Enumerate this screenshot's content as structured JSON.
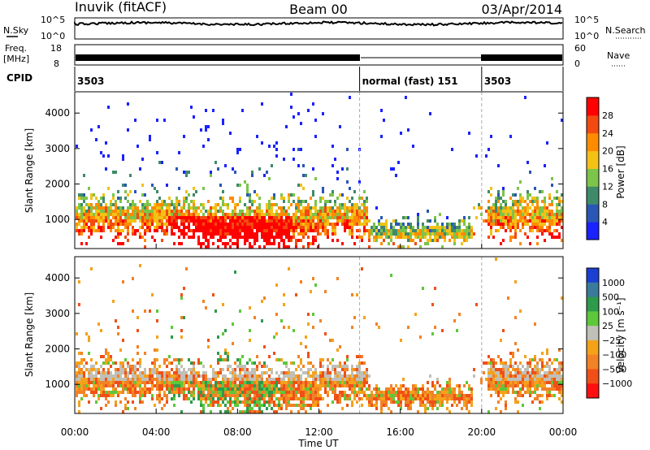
{
  "header": {
    "station": "Inuvik (fitACF)",
    "beam": "Beam 00",
    "date": "03/Apr/2014"
  },
  "sky_panel": {
    "left_label": "N.Sky",
    "right_label": "N.Search",
    "ticks_left": [
      "10^5",
      "10^0"
    ],
    "ticks_right": [
      "10^5",
      "10^0"
    ]
  },
  "freq_panel": {
    "left_label_1": "Freq.",
    "left_label_2": "[MHz]",
    "right_label": "Nave",
    "ticks_left": [
      "18",
      "8"
    ],
    "ticks_right": [
      "60",
      "0"
    ]
  },
  "cpid_panel": {
    "label": "CPID",
    "segments": [
      {
        "start_hour": 0,
        "end_hour": 14,
        "label": "3503"
      },
      {
        "start_hour": 14,
        "end_hour": 20,
        "label": "normal (fast) 151"
      },
      {
        "start_hour": 20,
        "end_hour": 24,
        "label": "3503"
      }
    ]
  },
  "chart_data": [
    {
      "type": "heatmap",
      "name": "power",
      "ylabel": "Slant Range [km]",
      "yticks": [
        "1000",
        "2000",
        "3000",
        "4000"
      ],
      "ylim": [
        180,
        4600
      ],
      "colorbar_label": "Power [dB]",
      "colorbar_ticks": [
        "4",
        "8",
        "12",
        "16",
        "20",
        "24",
        "28"
      ],
      "colorbar_range": [
        0,
        32
      ],
      "colors": [
        "#1a22ff",
        "#2a56b5",
        "#3f8a6a",
        "#7cc44a",
        "#f2c216",
        "#ff8c00",
        "#f24a10",
        "#ff0000"
      ]
    },
    {
      "type": "heatmap",
      "name": "velocity",
      "ylabel": "Slant Range [km]",
      "yticks": [
        "1000",
        "2000",
        "3000",
        "4000"
      ],
      "ylim": [
        180,
        4600
      ],
      "colorbar_label": "Velocity [m s⁻¹]",
      "colorbar_ticks": [
        "1000",
        "500",
        "100",
        "25",
        "−25",
        "−100",
        "−500",
        "−1000"
      ],
      "colors": [
        "#1b3fd0",
        "#3a7a9a",
        "#2e9a4c",
        "#5cc83a",
        "#c0c0b8",
        "#f5a21a",
        "#f28226",
        "#f05018",
        "#ff1010"
      ]
    }
  ],
  "x_axis": {
    "label": "Time UT",
    "ticks": [
      "00:00",
      "04:00",
      "08:00",
      "12:00",
      "16:00",
      "20:00",
      "00:00"
    ],
    "range_hours": [
      0,
      24
    ]
  }
}
